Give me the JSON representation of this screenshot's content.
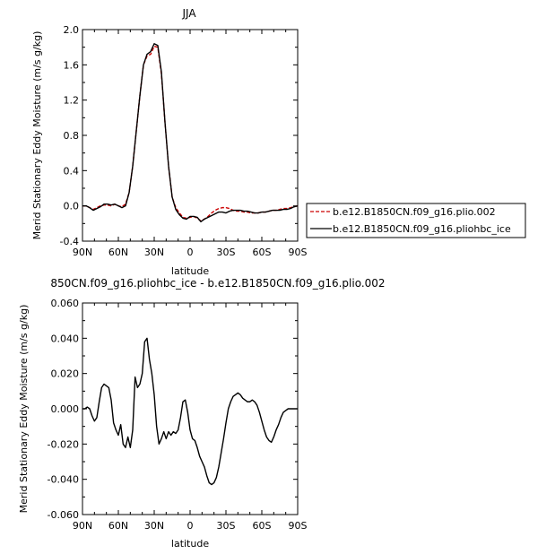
{
  "chart_data": [
    {
      "type": "line",
      "title": "JJA",
      "xlabel": "latitude",
      "ylabel": "Merid Stationary Eddy Moisture (m/s g/kg)",
      "xlim": [
        90,
        -90
      ],
      "ylim": [
        -0.4,
        2.0
      ],
      "x_ticks": [
        90,
        60,
        30,
        0,
        -30,
        -60,
        -90
      ],
      "x_tick_labels": [
        "90N",
        "60N",
        "30N",
        "0",
        "30S",
        "60S",
        "90S"
      ],
      "y_ticks": [
        -0.4,
        0.0,
        0.4,
        0.8,
        1.2,
        1.6,
        2.0
      ],
      "y_tick_labels": [
        "-0.4",
        "0.0",
        "0.4",
        "0.8",
        "1.2",
        "1.6",
        "2.0"
      ],
      "legend": {
        "placement": "right-outside"
      },
      "x": [
        90,
        87,
        84,
        81,
        78,
        75,
        72,
        69,
        66,
        63,
        60,
        57,
        54,
        51,
        48,
        45,
        42,
        39,
        36,
        33,
        30,
        27,
        24,
        21,
        18,
        15,
        12,
        9,
        6,
        3,
        0,
        -3,
        -6,
        -9,
        -12,
        -15,
        -18,
        -21,
        -24,
        -27,
        -30,
        -33,
        -36,
        -39,
        -42,
        -45,
        -48,
        -51,
        -54,
        -57,
        -60,
        -63,
        -66,
        -69,
        -72,
        -75,
        -78,
        -81,
        -84,
        -87,
        -90
      ],
      "series": [
        {
          "name": "b.e12.B1850CN.f09_g16.plio.002",
          "color": "#cc0000",
          "dash": "dashed",
          "values": [
            0.0,
            0.0,
            -0.02,
            -0.04,
            -0.02,
            0.0,
            0.01,
            0.01,
            0.0,
            0.02,
            0.0,
            -0.01,
            0.02,
            0.15,
            0.45,
            0.85,
            1.25,
            1.6,
            1.7,
            1.72,
            1.81,
            1.8,
            1.5,
            0.95,
            0.45,
            0.1,
            -0.02,
            -0.08,
            -0.13,
            -0.14,
            -0.13,
            -0.12,
            -0.14,
            -0.17,
            -0.15,
            -0.12,
            -0.08,
            -0.05,
            -0.03,
            -0.02,
            -0.02,
            -0.03,
            -0.05,
            -0.06,
            -0.06,
            -0.07,
            -0.07,
            -0.08,
            -0.08,
            -0.08,
            -0.07,
            -0.07,
            -0.06,
            -0.05,
            -0.05,
            -0.04,
            -0.03,
            -0.03,
            -0.02,
            -0.01,
            0.0
          ]
        },
        {
          "name": "b.e12.B1850CN.f09_g16.pliohbc_ice",
          "color": "#000000",
          "dash": "solid",
          "values": [
            0.0,
            0.0,
            -0.02,
            -0.05,
            -0.03,
            -0.01,
            0.02,
            0.02,
            0.01,
            0.02,
            0.0,
            -0.02,
            0.0,
            0.15,
            0.45,
            0.85,
            1.25,
            1.6,
            1.72,
            1.75,
            1.84,
            1.82,
            1.52,
            0.95,
            0.45,
            0.1,
            -0.04,
            -0.1,
            -0.14,
            -0.15,
            -0.12,
            -0.12,
            -0.13,
            -0.18,
            -0.15,
            -0.13,
            -0.11,
            -0.09,
            -0.07,
            -0.07,
            -0.08,
            -0.06,
            -0.05,
            -0.05,
            -0.05,
            -0.06,
            -0.06,
            -0.07,
            -0.08,
            -0.08,
            -0.07,
            -0.07,
            -0.06,
            -0.05,
            -0.05,
            -0.05,
            -0.04,
            -0.04,
            -0.03,
            -0.01,
            0.0
          ]
        }
      ]
    },
    {
      "type": "line",
      "title": "850CN.f09_g16.pliohbc_ice - b.e12.B1850CN.f09_g16.plio.002",
      "xlabel": "latitude",
      "ylabel": "Merid Stationary Eddy Moisture (m/s g/kg)",
      "xlim": [
        90,
        -90
      ],
      "ylim": [
        -0.06,
        0.06
      ],
      "x_ticks": [
        90,
        60,
        30,
        0,
        -30,
        -60,
        -90
      ],
      "x_tick_labels": [
        "90N",
        "60N",
        "30N",
        "0",
        "30S",
        "60S",
        "90S"
      ],
      "y_ticks": [
        -0.06,
        -0.04,
        -0.02,
        0.0,
        0.02,
        0.04,
        0.06
      ],
      "y_tick_labels": [
        "-0.060",
        "-0.040",
        "-0.020",
        "0.000",
        "0.020",
        "0.040",
        "0.060"
      ],
      "x": [
        90,
        88,
        86,
        84,
        82,
        80,
        78,
        76,
        74,
        72,
        70,
        68,
        66,
        64,
        62,
        60,
        58,
        56,
        54,
        52,
        50,
        48,
        46,
        44,
        42,
        40,
        38,
        36,
        34,
        32,
        30,
        28,
        26,
        24,
        22,
        20,
        18,
        16,
        14,
        12,
        10,
        8,
        6,
        4,
        2,
        0,
        -2,
        -4,
        -6,
        -8,
        -10,
        -12,
        -14,
        -16,
        -18,
        -20,
        -22,
        -24,
        -26,
        -28,
        -30,
        -32,
        -34,
        -36,
        -38,
        -40,
        -42,
        -44,
        -46,
        -48,
        -50,
        -52,
        -54,
        -56,
        -58,
        -60,
        -62,
        -64,
        -66,
        -68,
        -70,
        -72,
        -74,
        -76,
        -78,
        -80,
        -82,
        -84,
        -86,
        -88,
        -90
      ],
      "series": [
        {
          "name": "",
          "color": "#000000",
          "dash": "solid",
          "values": [
            0.0,
            0.0,
            0.001,
            0.0,
            -0.004,
            -0.007,
            -0.005,
            0.004,
            0.012,
            0.014,
            0.013,
            0.012,
            0.005,
            -0.008,
            -0.012,
            -0.015,
            -0.009,
            -0.02,
            -0.022,
            -0.016,
            -0.022,
            -0.012,
            0.018,
            0.012,
            0.014,
            0.02,
            0.038,
            0.04,
            0.028,
            0.02,
            0.008,
            -0.01,
            -0.02,
            -0.017,
            -0.013,
            -0.017,
            -0.013,
            -0.015,
            -0.013,
            -0.014,
            -0.012,
            -0.005,
            0.004,
            0.005,
            -0.002,
            -0.012,
            -0.017,
            -0.018,
            -0.022,
            -0.027,
            -0.03,
            -0.033,
            -0.038,
            -0.042,
            -0.043,
            -0.042,
            -0.039,
            -0.033,
            -0.025,
            -0.017,
            -0.008,
            0.0,
            0.004,
            0.007,
            0.008,
            0.009,
            0.008,
            0.006,
            0.005,
            0.004,
            0.004,
            0.005,
            0.004,
            0.002,
            -0.002,
            -0.007,
            -0.012,
            -0.016,
            -0.018,
            -0.019,
            -0.016,
            -0.012,
            -0.009,
            -0.005,
            -0.002,
            -0.001,
            0.0,
            0.0,
            0.0,
            0.0,
            0.0
          ]
        }
      ]
    }
  ]
}
